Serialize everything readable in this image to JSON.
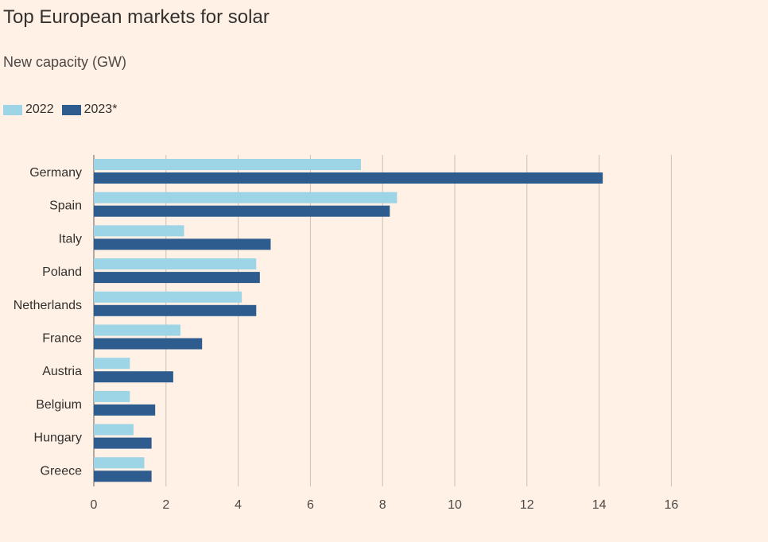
{
  "chart_data": {
    "type": "bar",
    "orientation": "horizontal",
    "title": "Top European markets for solar",
    "subtitle": "New capacity (GW)",
    "categories": [
      "Germany",
      "Spain",
      "Italy",
      "Poland",
      "Netherlands",
      "France",
      "Austria",
      "Belgium",
      "Hungary",
      "Greece"
    ],
    "series": [
      {
        "name": "2022",
        "color": "#9dd4e6",
        "values": [
          7.4,
          8.4,
          2.5,
          4.5,
          4.1,
          2.4,
          1.0,
          1.0,
          1.1,
          1.4
        ]
      },
      {
        "name": "2023*",
        "color": "#2e5c8e",
        "values": [
          14.1,
          8.2,
          4.9,
          4.6,
          4.5,
          3.0,
          2.2,
          1.7,
          1.6,
          1.6
        ]
      }
    ],
    "xlim": [
      0,
      16
    ],
    "xticks": [
      "0",
      "2",
      "4",
      "6",
      "8",
      "10",
      "12",
      "14",
      "16"
    ],
    "grid": true,
    "legend_position": "top-left"
  }
}
